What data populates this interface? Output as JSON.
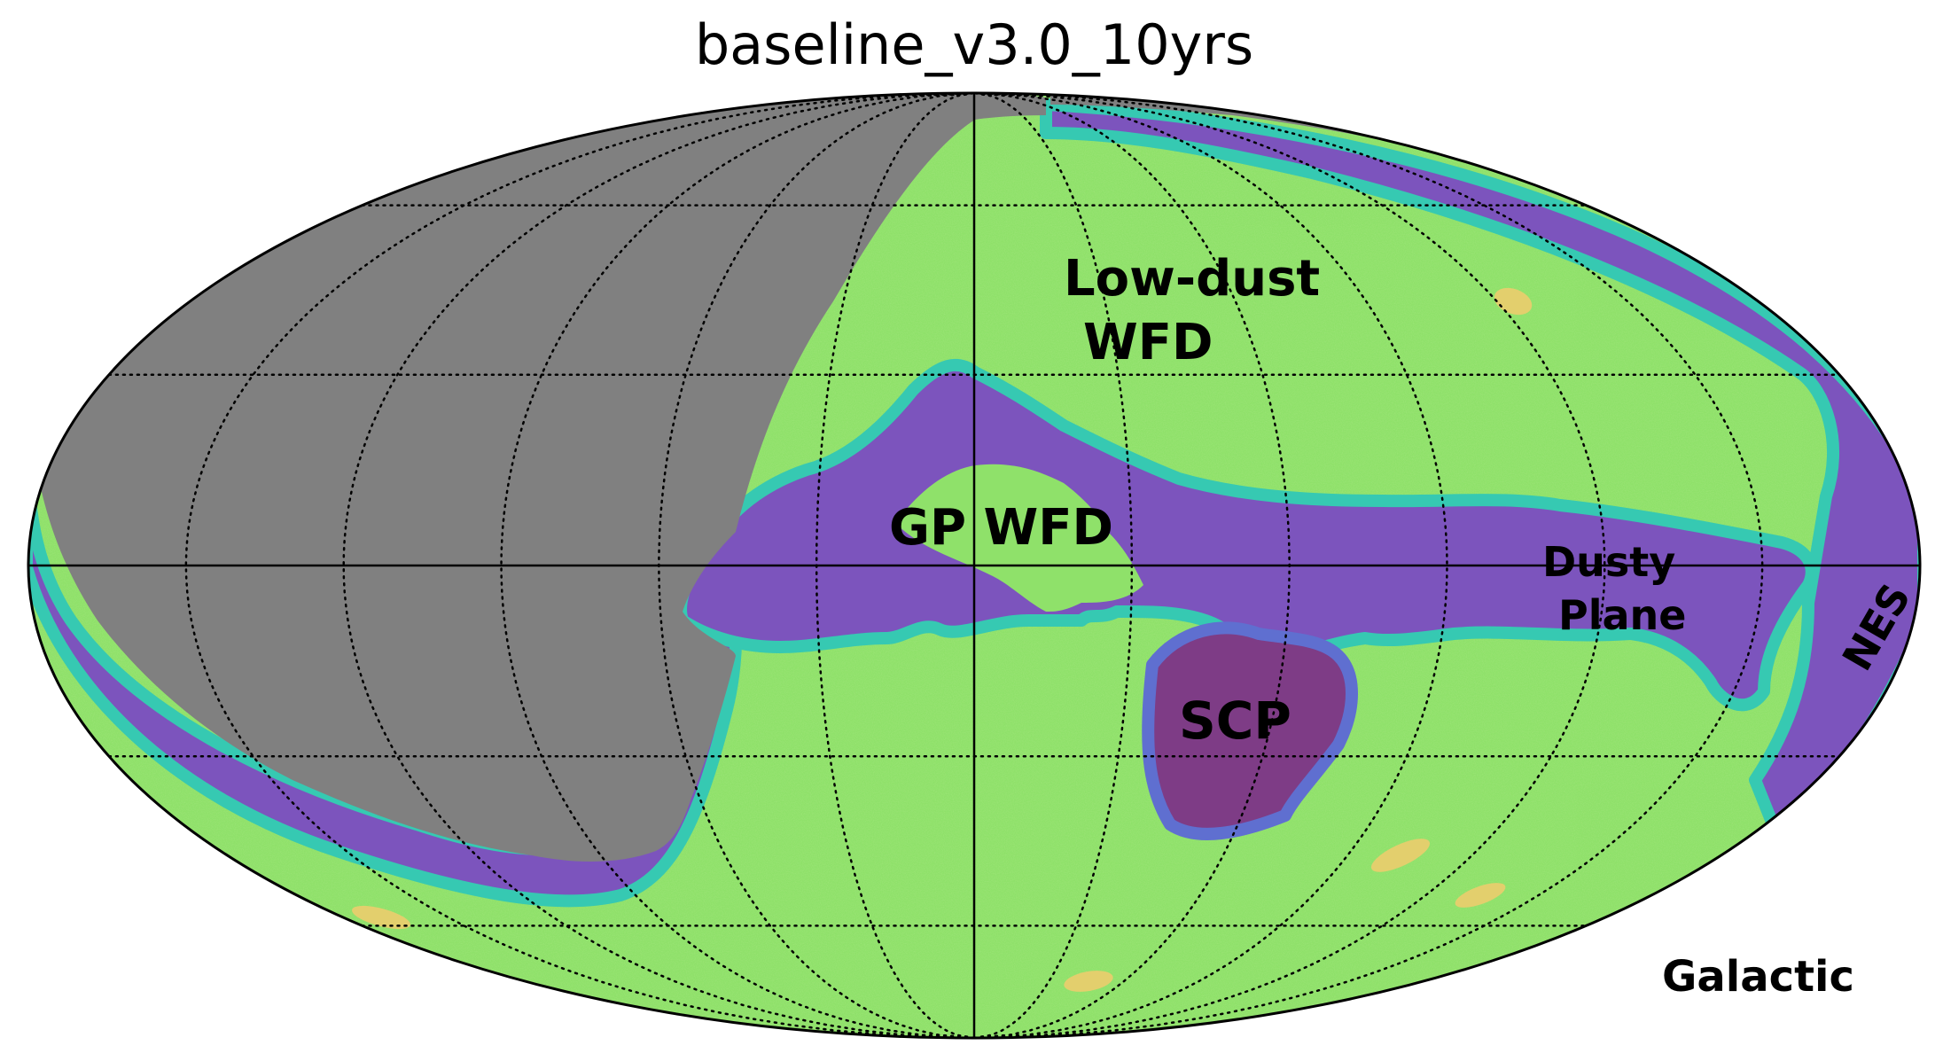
{
  "map": {
    "title": "baseline_v3.0_10yrs",
    "projection": "mollweide",
    "coordinate_frame_label": "Galactic",
    "graticule": {
      "style": "dotted",
      "color": "#000000"
    },
    "colors": {
      "unobserved": "#808080",
      "wfd_lowdust": "#8fe16a",
      "wfd_speckle": "#c3df72",
      "dusty_plane": "#7c54bd",
      "plane_edge": "#5f6fd0",
      "transition": "#36c9b2",
      "scp_core": "#7e3c86",
      "deep_drilling": "#e3cf6d"
    },
    "regions": [
      {
        "name": "low-dust-wfd",
        "lines": [
          "Low-dust",
          "WFD"
        ]
      },
      {
        "name": "gp-wfd",
        "lines": [
          "GP WFD"
        ]
      },
      {
        "name": "dusty-plane",
        "lines": [
          "Dusty",
          "Plane"
        ]
      },
      {
        "name": "scp",
        "lines": [
          "SCP"
        ]
      },
      {
        "name": "nes",
        "lines": [
          "NES"
        ]
      }
    ]
  }
}
